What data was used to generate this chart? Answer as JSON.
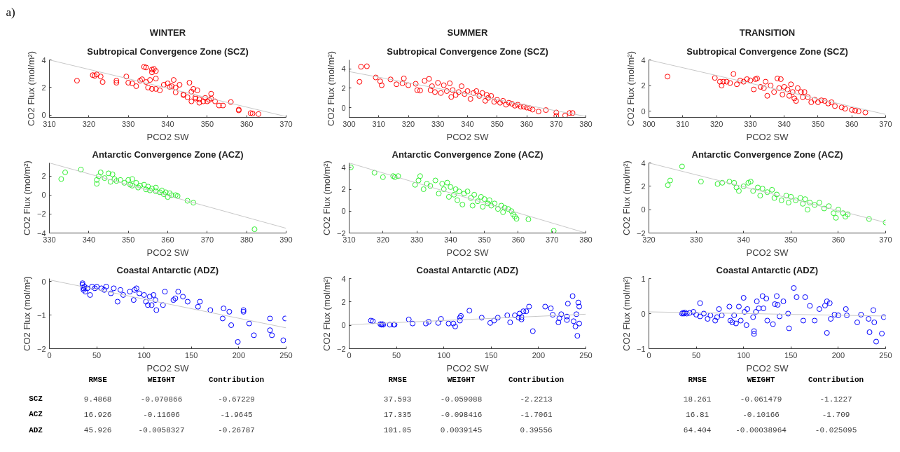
{
  "chart_data": [
    {
      "type": "scatter",
      "title": "WINTER",
      "subtitle": "Subtropical Convergence Zone (SCZ)",
      "annotations": [
        "a)"
      ],
      "xlabel": "PCO2 SW",
      "ylabel": "CO2 Flux (mol/m²)",
      "xlim": [
        310,
        370
      ],
      "xticks": [
        310,
        320,
        330,
        340,
        350,
        360,
        370
      ],
      "ylim": [
        -0.16,
        4
      ],
      "yticks": [
        0,
        2,
        4
      ],
      "grid": false,
      "series": [
        {
          "marker": "circle",
          "color": "#ff0000",
          "x": [
            317,
            321,
            321.5,
            322,
            323,
            323.5,
            327,
            327,
            329.5,
            330,
            331,
            332,
            333,
            333.5,
            334,
            334.5,
            334.5,
            335,
            335.5,
            336,
            336,
            336.5,
            337,
            337,
            336,
            337,
            338,
            339,
            340,
            340.5,
            341,
            341.5,
            342,
            342,
            343,
            344,
            344,
            345,
            345.5,
            346,
            346,
            346.5,
            347,
            347,
            347.5,
            348,
            348,
            349,
            349.5,
            350,
            350.5,
            351,
            351,
            352,
            353,
            354,
            356,
            358,
            358,
            361,
            361.5,
            363
          ],
          "values": [
            2.5,
            2.9,
            2.85,
            2.95,
            2.8,
            2.4,
            2.5,
            2.35,
            2.8,
            2.35,
            2.3,
            2.1,
            2.5,
            2.6,
            3.5,
            2.4,
            3.45,
            2.0,
            2.55,
            3.3,
            3.1,
            3.35,
            2.65,
            3.2,
            1.9,
            1.9,
            1.8,
            2.2,
            2.3,
            2.05,
            2.1,
            2.55,
            1.65,
            2.0,
            2.2,
            1.5,
            1.45,
            1.3,
            2.35,
            1.0,
            1.7,
            1.9,
            1.3,
            1.2,
            1.8,
            0.9,
            1.15,
            1.0,
            1.25,
            1.0,
            1.1,
            1.55,
            1.2,
            1.0,
            0.7,
            0.7,
            0.95,
            0.4,
            0.35,
            0.15,
            0.12,
            0.08
          ]
        },
        {
          "type": "line",
          "color": "#c8c8c8",
          "x": [
            310,
            370
          ],
          "values": [
            4.0,
            -0.1
          ]
        }
      ]
    },
    {
      "type": "scatter",
      "title": "SUMMER",
      "subtitle": "Subtropical Convergence Zone (SCZ)",
      "xlabel": "PCO2 SW",
      "ylabel": "CO2 Flux (mol/m²)",
      "xlim": [
        300,
        380
      ],
      "xticks": [
        300,
        310,
        320,
        330,
        340,
        350,
        360,
        370,
        380
      ],
      "ylim": [
        -1,
        4.9
      ],
      "yticks": [
        0,
        2,
        4
      ],
      "grid": false,
      "series": [
        {
          "marker": "circle",
          "color": "#ff0000",
          "x": [
            303.5,
            304,
            306,
            309,
            310.5,
            311,
            314,
            316,
            318,
            318.5,
            320,
            322.5,
            323,
            324,
            325.5,
            327,
            327.5,
            328,
            329,
            330,
            331,
            332,
            333,
            334,
            334.5,
            335,
            336,
            337,
            338,
            339,
            340,
            341,
            342,
            343,
            344,
            345,
            346,
            346.5,
            347,
            348,
            349,
            350,
            351,
            352,
            353,
            354,
            355,
            356,
            357,
            358,
            359,
            360,
            361,
            362,
            364,
            366.5,
            370,
            370,
            373,
            374.5,
            375.5
          ],
          "values": [
            2.65,
            4.2,
            4.25,
            3.1,
            2.7,
            2.3,
            2.9,
            2.4,
            2.5,
            3.0,
            2.3,
            2.45,
            1.8,
            1.75,
            2.75,
            2.95,
            1.8,
            2.2,
            1.6,
            2.55,
            1.5,
            2.3,
            1.7,
            2.5,
            1.1,
            1.8,
            1.3,
            1.6,
            2.2,
            1.4,
            1.7,
            0.9,
            1.5,
            1.7,
            1.2,
            1.5,
            0.7,
            1.3,
            1.0,
            1.2,
            0.6,
            0.8,
            0.5,
            0.7,
            0.3,
            0.5,
            0.4,
            0.2,
            0.3,
            0.1,
            0.1,
            0.0,
            -0.05,
            -0.2,
            -0.4,
            -0.25,
            -0.5,
            -0.85,
            -0.8,
            -0.55,
            -0.55
          ]
        },
        {
          "type": "line",
          "color": "#c8c8c8",
          "x": [
            300,
            380
          ],
          "values": [
            3.7,
            -0.9
          ]
        }
      ]
    },
    {
      "type": "scatter",
      "title": "TRANSITION",
      "subtitle": "Subtropical Convergence Zone (SCZ)",
      "xlabel": "PCO2 SW",
      "ylabel": "CO2 Flux (mol/m²)",
      "xlim": [
        300,
        370
      ],
      "xticks": [
        300,
        310,
        320,
        330,
        340,
        350,
        360,
        370
      ],
      "ylim": [
        -0.48,
        4
      ],
      "yticks": [
        0,
        2,
        4
      ],
      "grid": false,
      "series": [
        {
          "marker": "circle",
          "color": "#ff0000",
          "x": [
            305.5,
            319.5,
            321,
            321.5,
            322,
            323,
            324,
            325,
            326,
            327,
            328,
            329,
            330,
            331,
            331.5,
            332,
            333,
            334,
            334.5,
            335,
            336,
            337,
            338,
            338.5,
            339,
            339.5,
            340,
            341,
            341.5,
            342,
            342.5,
            343,
            343.5,
            344,
            345,
            345.5,
            346,
            347,
            348,
            349,
            350,
            351,
            352,
            353,
            354,
            355,
            357,
            358,
            360,
            361,
            362,
            364
          ],
          "values": [
            2.7,
            2.6,
            2.3,
            2.0,
            2.3,
            2.3,
            2.2,
            2.9,
            2.1,
            2.4,
            2.3,
            2.5,
            2.4,
            1.7,
            2.5,
            2.55,
            1.9,
            1.8,
            2.3,
            1.2,
            2.0,
            1.5,
            2.55,
            1.8,
            2.5,
            1.3,
            1.9,
            1.7,
            1.2,
            2.1,
            1.5,
            1.0,
            0.8,
            1.8,
            1.5,
            1.1,
            1.5,
            1.1,
            0.7,
            0.9,
            0.7,
            0.85,
            0.8,
            0.6,
            0.7,
            0.4,
            0.3,
            0.2,
            0.1,
            0.05,
            0.0,
            -0.1
          ]
        },
        {
          "type": "line",
          "color": "#c8c8c8",
          "x": [
            300,
            370
          ],
          "values": [
            4.0,
            -0.25
          ]
        }
      ]
    },
    {
      "type": "scatter",
      "title": "Antarctic Convergence Zone (ACZ)",
      "xlabel": "PCO2 SW",
      "ylabel": "CO2 Flux (mol/m²)",
      "xlim": [
        330,
        390
      ],
      "xticks": [
        330,
        340,
        350,
        360,
        370,
        380,
        390
      ],
      "ylim": [
        -4,
        3.4
      ],
      "yticks": [
        -4,
        -2,
        0,
        2
      ],
      "grid": false,
      "series": [
        {
          "marker": "circle",
          "color": "#33ee33",
          "x": [
            333,
            334,
            338,
            342,
            342,
            342.5,
            343,
            344,
            345,
            345.5,
            346,
            346.5,
            347,
            348,
            349,
            350,
            350.5,
            351,
            351,
            352,
            352.5,
            353,
            354,
            354.5,
            355,
            355.5,
            356,
            357,
            357,
            358,
            358.5,
            359,
            359.5,
            360,
            360.5,
            361,
            362,
            362.5,
            365,
            366.5,
            382
          ],
          "values": [
            1.7,
            2.4,
            2.7,
            1.2,
            1.6,
            2.0,
            2.4,
            1.8,
            2.3,
            1.4,
            2.2,
            1.7,
            1.5,
            1.6,
            1.3,
            1.6,
            1.1,
            1.7,
            1.0,
            1.3,
            0.8,
            1.0,
            1.1,
            0.6,
            0.9,
            0.5,
            0.7,
            0.4,
            0.8,
            0.3,
            0.5,
            0.1,
            0.3,
            -0.2,
            0.2,
            0.0,
            0.0,
            -0.1,
            -0.6,
            -0.8,
            -3.6
          ]
        },
        {
          "type": "line",
          "color": "#c8c8c8",
          "x": [
            330,
            390
          ],
          "values": [
            3.4,
            -3.5
          ]
        }
      ]
    },
    {
      "type": "scatter",
      "title": "Antarctic Convergence Zone (ACZ)",
      "xlabel": "PCO2 SW",
      "ylabel": "CO2 Flux (mol/m²)",
      "xlim": [
        310,
        380
      ],
      "xticks": [
        310,
        320,
        330,
        340,
        350,
        360,
        370,
        380
      ],
      "ylim": [
        -2,
        4.4
      ],
      "yticks": [
        -2,
        0,
        2,
        4
      ],
      "grid": false,
      "series": [
        {
          "marker": "circle",
          "color": "#33ee33",
          "x": [
            310.5,
            317.5,
            320,
            323,
            323.5,
            324.5,
            329.5,
            330.5,
            331,
            332,
            333,
            334,
            335.5,
            336.5,
            337.5,
            338,
            339,
            339.5,
            340,
            341,
            341.5,
            342,
            342.5,
            343.5,
            344,
            345,
            346,
            346.5,
            347,
            348,
            349,
            349.5,
            350,
            351,
            351.5,
            352,
            353,
            354,
            355,
            355.5,
            356,
            357,
            358,
            358.5,
            359,
            359.5,
            363,
            370.5
          ],
          "values": [
            4.0,
            3.5,
            3.1,
            3.2,
            3.1,
            3.2,
            2.4,
            2.8,
            3.2,
            2.0,
            2.5,
            2.3,
            2.8,
            1.6,
            2.5,
            2.0,
            2.6,
            1.3,
            2.2,
            1.5,
            2.0,
            1.0,
            1.8,
            0.6,
            1.6,
            1.8,
            1.2,
            0.5,
            1.5,
            0.9,
            1.3,
            0.4,
            1.1,
            0.7,
            1.0,
            0.5,
            0.7,
            0.2,
            0.5,
            -0.1,
            0.3,
            0.2,
            0.0,
            -0.3,
            -0.5,
            -0.7,
            -0.75,
            -1.8
          ]
        },
        {
          "type": "line",
          "color": "#c8c8c8",
          "x": [
            310,
            380
          ],
          "values": [
            4.4,
            -2.0
          ]
        }
      ]
    },
    {
      "type": "scatter",
      "title": "Antarctic Convergence Zone (ACZ)",
      "xlabel": "PCO2 SW",
      "ylabel": "CO2 Flux (mol/m²)",
      "xlim": [
        320,
        370
      ],
      "xticks": [
        320,
        330,
        340,
        350,
        360,
        370
      ],
      "ylim": [
        -2,
        4
      ],
      "yticks": [
        -2,
        0,
        2,
        4
      ],
      "grid": false,
      "series": [
        {
          "marker": "circle",
          "color": "#33ee33",
          "x": [
            324,
            324.5,
            327,
            331,
            334.5,
            335.5,
            337,
            338,
            338.5,
            339,
            340,
            341,
            341.5,
            342,
            343,
            343.5,
            344,
            345,
            346,
            346.5,
            347,
            348,
            349,
            349.5,
            350,
            351,
            352,
            352.5,
            353,
            353.5,
            354,
            355,
            356,
            357,
            358,
            359,
            359.5,
            360,
            361,
            361.5,
            362,
            366.5,
            370
          ],
          "values": [
            2.1,
            2.5,
            3.7,
            2.4,
            2.2,
            2.3,
            2.4,
            2.3,
            1.9,
            1.6,
            2.0,
            2.3,
            2.4,
            1.6,
            1.9,
            1.2,
            1.8,
            1.5,
            1.7,
            1.0,
            1.3,
            0.8,
            1.2,
            0.6,
            1.1,
            0.8,
            1.0,
            0.5,
            0.9,
            0.0,
            0.6,
            0.4,
            0.6,
            0.1,
            0.3,
            -0.3,
            -0.7,
            0.0,
            -0.3,
            -0.6,
            -0.4,
            -0.8,
            -1.1
          ]
        },
        {
          "type": "line",
          "color": "#c8c8c8",
          "x": [
            320,
            370
          ],
          "values": [
            4.0,
            -1.1
          ]
        }
      ]
    },
    {
      "type": "scatter",
      "title": "Coastal Antarctic (ADZ)",
      "xlabel": "PCO2 SW",
      "ylabel": "CO2 Flux (mol/m²)",
      "xlim": [
        0,
        250
      ],
      "xticks": [
        0,
        50,
        100,
        150,
        200,
        250
      ],
      "ylim": [
        -2,
        0.09
      ],
      "yticks": [
        -2,
        -1,
        0
      ],
      "grid": false,
      "series": [
        {
          "marker": "circle",
          "color": "#0000ff",
          "x": [
            35,
            35,
            36,
            36,
            37,
            38,
            40,
            43,
            45,
            48,
            50,
            55,
            58,
            60,
            65,
            68,
            72,
            75,
            78,
            85,
            89,
            90,
            92,
            95,
            100,
            102,
            104,
            106,
            108,
            110,
            112,
            113,
            120,
            122,
            131,
            133,
            136,
            141,
            146,
            157,
            159,
            170,
            183,
            184,
            190,
            192,
            199,
            205,
            205,
            211,
            216,
            233,
            233,
            235,
            247,
            249
          ],
          "values": [
            -0.05,
            -0.1,
            -0.2,
            -0.25,
            -0.15,
            -0.3,
            -0.2,
            -0.4,
            -0.15,
            -0.2,
            -0.15,
            -0.2,
            -0.25,
            -0.15,
            -0.35,
            -0.2,
            -0.6,
            -0.25,
            -0.4,
            -0.3,
            -0.55,
            -0.25,
            -0.2,
            -0.35,
            -0.4,
            -0.6,
            -0.7,
            -0.45,
            -0.7,
            -0.4,
            -0.55,
            -0.85,
            -0.7,
            -0.3,
            -0.55,
            -0.5,
            -0.3,
            -0.45,
            -0.6,
            -0.75,
            -0.6,
            -0.85,
            -1.1,
            -0.8,
            -0.9,
            -1.3,
            -1.8,
            -0.85,
            -0.9,
            -1.25,
            -1.6,
            -1.1,
            -1.45,
            -1.6,
            -1.75,
            -1.1
          ]
        },
        {
          "type": "line",
          "color": "#c8c8c8",
          "x": [
            0,
            250
          ],
          "values": [
            0.05,
            -1.38
          ]
        }
      ]
    },
    {
      "type": "scatter",
      "title": "Coastal Antarctic (ADZ)",
      "xlabel": "PCO2 SW",
      "ylabel": "CO2 Flux (mol/m²)",
      "xlim": [
        0,
        250
      ],
      "xticks": [
        0,
        50,
        100,
        150,
        200,
        250
      ],
      "ylim": [
        -2,
        4
      ],
      "yticks": [
        -2,
        0,
        2,
        4
      ],
      "grid": false,
      "series": [
        {
          "marker": "circle",
          "color": "#0000ff",
          "x": [
            23,
            25,
            33,
            34,
            35,
            36,
            43,
            47,
            48,
            63,
            67,
            81,
            84,
            94,
            97,
            105,
            110,
            112,
            117,
            117,
            118,
            127,
            140,
            149,
            153,
            157,
            167,
            170,
            175,
            179,
            180,
            182,
            182,
            184,
            187,
            190,
            194,
            207,
            213,
            215,
            221,
            222,
            224,
            230,
            230,
            231,
            236,
            237,
            239,
            240,
            241,
            242,
            243,
            243
          ],
          "values": [
            0.4,
            0.35,
            0.1,
            0.05,
            0.1,
            0.05,
            0.05,
            0.05,
            0.05,
            0.5,
            0.15,
            0.15,
            0.3,
            0.2,
            0.55,
            0.15,
            0.15,
            -0.1,
            0.4,
            0.65,
            0.8,
            1.25,
            0.65,
            0.2,
            0.4,
            0.65,
            0.85,
            0.25,
            0.85,
            0.65,
            1.0,
            0.7,
            0.5,
            1.2,
            1.2,
            1.6,
            -0.5,
            1.6,
            1.45,
            0.9,
            0.25,
            0.6,
            0.95,
            0.75,
            0.45,
            1.85,
            2.5,
            0.35,
            -0.1,
            0.95,
            -0.9,
            1.95,
            0.15,
            1.6
          ]
        },
        {
          "type": "line",
          "color": "#c8c8c8",
          "x": [
            0,
            250
          ],
          "values": [
            0.05,
            0.95
          ]
        }
      ]
    },
    {
      "type": "scatter",
      "title": "Coastal Antarctic (ADZ)",
      "xlabel": "PCO2 SW",
      "ylabel": "CO2 Flux (mol/m²)",
      "xlim": [
        0,
        250
      ],
      "xticks": [
        0,
        50,
        100,
        150,
        200,
        250
      ],
      "ylim": [
        -1,
        1
      ],
      "yticks": [
        -1,
        0,
        1
      ],
      "grid": false,
      "series": [
        {
          "marker": "circle",
          "color": "#0000ff",
          "x": [
            35,
            36,
            37,
            38,
            40,
            43,
            47,
            50,
            54,
            54,
            58,
            62,
            65,
            70,
            72,
            74,
            77,
            85,
            86,
            88,
            90,
            92,
            95,
            97,
            100,
            101,
            103,
            104,
            110,
            111,
            111,
            113,
            114,
            116,
            120,
            121,
            124,
            125,
            131,
            133,
            135,
            136,
            138,
            142,
            147,
            148,
            153,
            156,
            163,
            165,
            170,
            175,
            180,
            186,
            188,
            188,
            191,
            192,
            196,
            200,
            208,
            209,
            220,
            224,
            232,
            233,
            237,
            238,
            240,
            246,
            248
          ],
          "values": [
            0.0,
            0.02,
            0.0,
            0.03,
            0.0,
            0.02,
            0.05,
            -0.03,
            0.3,
            -0.08,
            0.0,
            -0.15,
            -0.05,
            -0.2,
            -0.1,
            0.13,
            -0.05,
            0.2,
            -0.2,
            -0.25,
            -0.05,
            -0.28,
            0.2,
            -0.2,
            0.45,
            0.05,
            -0.33,
            0.13,
            -0.1,
            -0.5,
            -0.58,
            0.05,
            0.35,
            0.15,
            0.5,
            0.15,
            0.43,
            -0.2,
            -0.3,
            0.27,
            0.5,
            0.25,
            -0.08,
            0.35,
            0.0,
            -0.42,
            0.73,
            0.47,
            -0.2,
            0.47,
            0.22,
            -0.2,
            0.13,
            0.23,
            0.35,
            -0.55,
            0.3,
            -0.15,
            -0.03,
            -0.05,
            0.13,
            -0.05,
            -0.25,
            -0.03,
            -0.15,
            -0.53,
            0.1,
            -0.25,
            -0.8,
            -0.57,
            -0.1
          ]
        },
        {
          "type": "line",
          "color": "#c8c8c8",
          "x": [
            0,
            250
          ],
          "values": [
            0.05,
            -0.07
          ]
        }
      ]
    },
    {
      "type": "other",
      "categories": [
        "RMSE",
        "WEIGHT",
        "Contribution"
      ],
      "y_categories": [
        "SCZ",
        "ACZ",
        "ADZ"
      ],
      "cell_labels": [
        [
          "9.4868",
          "-0.070866",
          "-0.67229"
        ],
        [
          "16.926",
          "-0.11606",
          "-1.9645"
        ],
        [
          "45.926",
          "-0.0058327",
          "-0.26787"
        ]
      ]
    },
    {
      "type": "other",
      "categories": [
        "RMSE",
        "WEIGHT",
        "Contribution"
      ],
      "cell_labels": [
        [
          "37.593",
          "-0.059088",
          "-2.2213"
        ],
        [
          "17.335",
          "-0.098416",
          "-1.7061"
        ],
        [
          "101.05",
          "0.0039145",
          "0.39556"
        ]
      ]
    },
    {
      "type": "other",
      "categories": [
        "RMSE",
        "WEIGHT",
        "Contribution"
      ],
      "cell_labels": [
        [
          "18.261",
          "-0.061479",
          "-1.1227"
        ],
        [
          "16.81",
          "-0.10166",
          "-1.709"
        ],
        [
          "64.404",
          "-0.00038964",
          "-0.025095"
        ]
      ]
    }
  ]
}
